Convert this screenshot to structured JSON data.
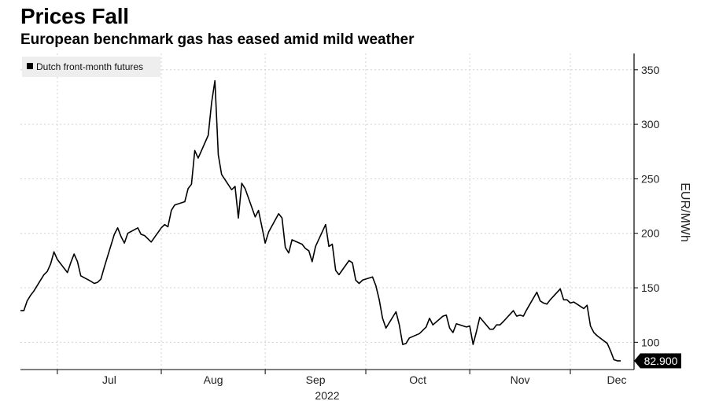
{
  "title": "Prices Fall",
  "subtitle": "European benchmark gas has eased amid mild weather",
  "chart_data": {
    "type": "line",
    "title": "Prices Fall",
    "subtitle": "European benchmark gas has eased amid mild weather",
    "xlabel": "2022",
    "ylabel": "EUR/MWh",
    "x_tick_labels": [
      "Jul",
      "Aug",
      "Sep",
      "Oct",
      "Nov",
      "Dec"
    ],
    "x_year_label": "2022",
    "y_ticks": [
      100,
      150,
      200,
      250,
      300,
      350
    ],
    "ylim": [
      75,
      365
    ],
    "xlim": [
      "2022-06-20",
      "2022-12-20"
    ],
    "grid": true,
    "legend_position": "top-left",
    "last_value_label": "82.900",
    "colors": {
      "line": "#000000",
      "grid": "#d2d2d2",
      "label_bg": "#000000"
    },
    "series": [
      {
        "name": "Dutch front-month futures",
        "x": [
          "2022-06-20",
          "2022-06-21",
          "2022-06-22",
          "2022-06-23",
          "2022-06-24",
          "2022-06-27",
          "2022-06-28",
          "2022-06-29",
          "2022-06-30",
          "2022-07-01",
          "2022-07-04",
          "2022-07-05",
          "2022-07-06",
          "2022-07-07",
          "2022-07-08",
          "2022-07-11",
          "2022-07-12",
          "2022-07-13",
          "2022-07-14",
          "2022-07-15",
          "2022-07-18",
          "2022-07-19",
          "2022-07-20",
          "2022-07-21",
          "2022-07-22",
          "2022-07-25",
          "2022-07-26",
          "2022-07-27",
          "2022-07-28",
          "2022-07-29",
          "2022-08-01",
          "2022-08-02",
          "2022-08-03",
          "2022-08-04",
          "2022-08-05",
          "2022-08-08",
          "2022-08-09",
          "2022-08-10",
          "2022-08-11",
          "2022-08-12",
          "2022-08-15",
          "2022-08-16",
          "2022-08-17",
          "2022-08-18",
          "2022-08-19",
          "2022-08-22",
          "2022-08-23",
          "2022-08-24",
          "2022-08-25",
          "2022-08-26",
          "2022-08-29",
          "2022-08-30",
          "2022-08-31",
          "2022-09-01",
          "2022-09-02",
          "2022-09-05",
          "2022-09-06",
          "2022-09-07",
          "2022-09-08",
          "2022-09-09",
          "2022-09-12",
          "2022-09-13",
          "2022-09-14",
          "2022-09-15",
          "2022-09-16",
          "2022-09-19",
          "2022-09-20",
          "2022-09-21",
          "2022-09-22",
          "2022-09-23",
          "2022-09-26",
          "2022-09-27",
          "2022-09-28",
          "2022-09-29",
          "2022-09-30",
          "2022-10-03",
          "2022-10-04",
          "2022-10-05",
          "2022-10-06",
          "2022-10-07",
          "2022-10-10",
          "2022-10-11",
          "2022-10-12",
          "2022-10-13",
          "2022-10-14",
          "2022-10-17",
          "2022-10-18",
          "2022-10-19",
          "2022-10-20",
          "2022-10-21",
          "2022-10-24",
          "2022-10-25",
          "2022-10-26",
          "2022-10-27",
          "2022-10-28",
          "2022-10-31",
          "2022-11-01",
          "2022-11-02",
          "2022-11-03",
          "2022-11-04",
          "2022-11-07",
          "2022-11-08",
          "2022-11-09",
          "2022-11-10",
          "2022-11-11",
          "2022-11-14",
          "2022-11-15",
          "2022-11-16",
          "2022-11-17",
          "2022-11-18",
          "2022-11-21",
          "2022-11-22",
          "2022-11-23",
          "2022-11-24",
          "2022-11-25",
          "2022-11-28",
          "2022-11-29",
          "2022-11-30",
          "2022-12-01",
          "2022-12-02",
          "2022-12-05",
          "2022-12-06",
          "2022-12-07",
          "2022-12-08",
          "2022-12-09",
          "2022-12-12",
          "2022-12-13",
          "2022-12-14",
          "2022-12-15",
          "2022-12-16"
        ],
        "values": [
          129,
          129,
          138,
          143,
          147,
          162,
          165,
          172,
          183,
          176,
          164,
          173,
          181,
          174,
          161,
          156,
          154,
          155,
          158,
          169,
          199,
          205,
          197,
          191,
          200,
          205,
          199,
          198,
          195,
          192,
          205,
          208,
          206,
          221,
          226,
          229,
          241,
          245,
          276,
          269,
          290,
          320,
          340,
          272,
          254,
          240,
          243,
          214,
          246,
          241,
          215,
          221,
          206,
          191,
          201,
          218,
          214,
          187,
          182,
          194,
          190,
          186,
          184,
          174,
          188,
          208,
          188,
          190,
          166,
          162,
          175,
          173,
          157,
          154,
          157,
          160,
          152,
          139,
          122,
          113,
          128,
          116,
          98,
          99,
          104,
          108,
          111,
          114,
          122,
          116,
          124,
          125,
          113,
          109,
          117,
          114,
          115,
          98,
          110,
          123,
          112,
          112,
          116,
          116,
          119,
          129,
          124,
          125,
          124,
          130,
          146,
          138,
          136,
          135,
          139,
          149,
          139,
          139,
          136,
          137,
          131,
          134,
          115,
          109,
          106,
          99,
          92,
          84,
          83,
          83
        ]
      }
    ]
  }
}
